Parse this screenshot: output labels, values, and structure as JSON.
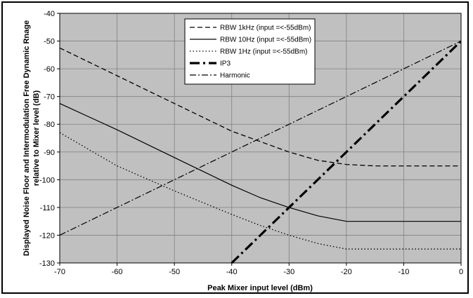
{
  "chart_data": {
    "type": "line",
    "title": "",
    "xlabel": "Peak Mixer input level (dBm)",
    "ylabel_lines": [
      "Displayed Noise Floor and Intermodulation Free Dynamic Rnage",
      "relative to Mixer level (dB)"
    ],
    "xlim": [
      -70,
      0
    ],
    "ylim": [
      -130,
      -40
    ],
    "x_ticks": [
      -70,
      -60,
      -50,
      -40,
      -30,
      -20,
      -10,
      0
    ],
    "y_ticks": [
      -40,
      -50,
      -60,
      -70,
      -80,
      -90,
      -100,
      -110,
      -120,
      -130
    ],
    "grid": true,
    "background": "#c0c0c0",
    "legend_position": "top-center",
    "series": [
      {
        "name": "RBW 1kHz (input =<-55dBm)",
        "style": "dashed",
        "color": "#000000",
        "x": [
          -70,
          -60,
          -50,
          -40,
          -30,
          -25,
          -20,
          -15,
          -10,
          -5,
          0
        ],
        "y": [
          -52.5,
          -62.5,
          -72.5,
          -82.5,
          -90,
          -93,
          -94.5,
          -95,
          -95,
          -95,
          -95
        ]
      },
      {
        "name": "RBW 10Hz (input =<-55dBm)",
        "style": "solid",
        "color": "#000000",
        "x": [
          -70,
          -60,
          -50,
          -40,
          -35,
          -30,
          -25,
          -20,
          -15,
          -10,
          -5,
          0
        ],
        "y": [
          -72.5,
          -82,
          -92,
          -102,
          -106.5,
          -110,
          -113,
          -115,
          -115,
          -115,
          -115,
          -115
        ]
      },
      {
        "name": "RBW 1Hz (input =<-55dBm)",
        "style": "dotted",
        "color": "#000000",
        "x": [
          -70,
          -60,
          -50,
          -40,
          -35,
          -30,
          -25,
          -20,
          -15,
          -10,
          -5,
          0
        ],
        "y": [
          -83,
          -95,
          -104,
          -112.5,
          -116.5,
          -120,
          -123,
          -125,
          -125,
          -125,
          -125,
          -125
        ]
      },
      {
        "name": "IP3",
        "style": "dashdot-bold",
        "color": "#000000",
        "x": [
          -40,
          0
        ],
        "y": [
          -130,
          -50
        ]
      },
      {
        "name": "Harmonic",
        "style": "dashdot",
        "color": "#000000",
        "x": [
          -70,
          0
        ],
        "y": [
          -120,
          -50
        ]
      }
    ]
  }
}
